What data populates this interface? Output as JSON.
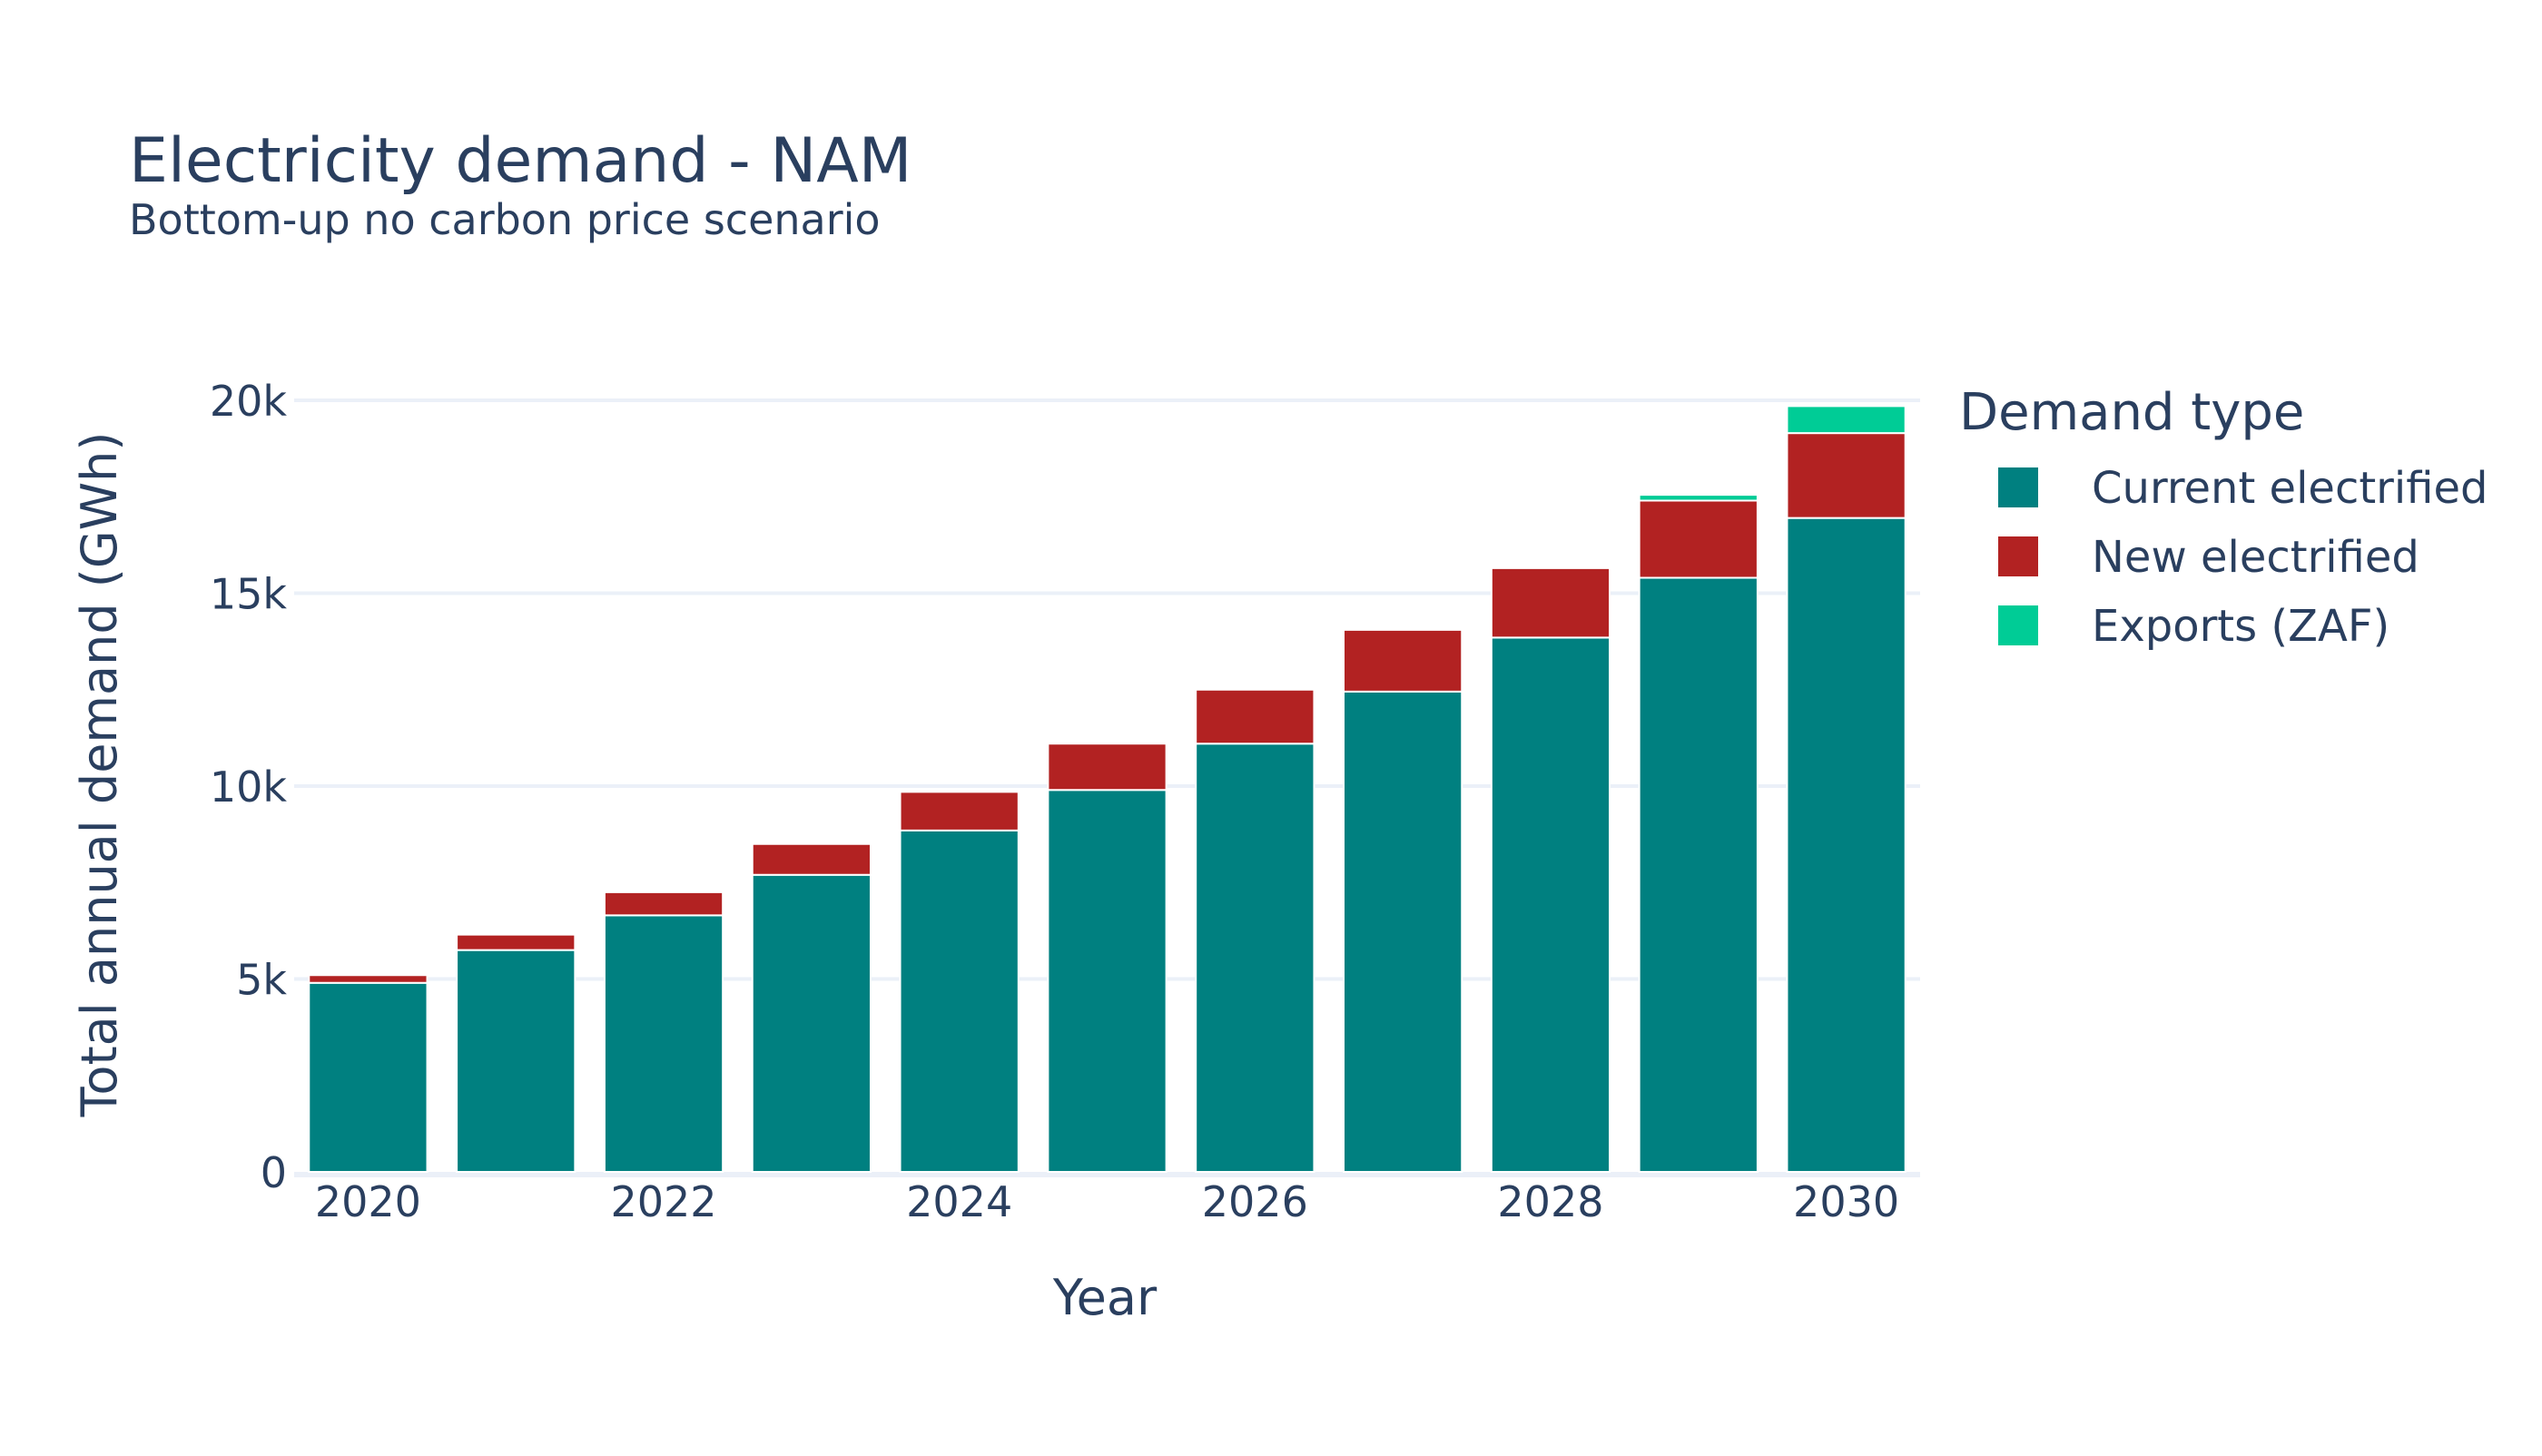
{
  "chart_data": {
    "type": "bar",
    "barmode": "stack",
    "title": "Electricity demand - NAM",
    "subtitle": "Bottom-up no carbon price scenario",
    "xlabel": "Year",
    "ylabel": "Total annual demand (GWh)",
    "x": [
      2020,
      2021,
      2022,
      2023,
      2024,
      2025,
      2026,
      2027,
      2028,
      2029,
      2030
    ],
    "x_tick_labels": [
      "2020",
      "2022",
      "2024",
      "2026",
      "2028",
      "2030"
    ],
    "x_tick_values": [
      2020,
      2022,
      2024,
      2026,
      2028,
      2030
    ],
    "y_tick_values": [
      0,
      5000,
      10000,
      15000,
      20000
    ],
    "y_tick_labels": [
      "0",
      "5k",
      "10k",
      "15k",
      "20k"
    ],
    "ylim": [
      0,
      21000
    ],
    "grid": true,
    "legend_title": "Demand type",
    "legend_position": "right",
    "series": [
      {
        "name": "Current electrified",
        "color": "#008080",
        "values": [
          4900,
          5750,
          6650,
          7700,
          8850,
          9900,
          11100,
          12450,
          13850,
          15400,
          16950
        ]
      },
      {
        "name": "New electrified",
        "color": "#b22222",
        "values": [
          200,
          400,
          600,
          800,
          1000,
          1200,
          1400,
          1600,
          1800,
          2000,
          2200
        ]
      },
      {
        "name": "Exports (ZAF)",
        "color": "#00cc96",
        "values": [
          0,
          0,
          0,
          0,
          0,
          0,
          0,
          0,
          0,
          150,
          700
        ]
      }
    ]
  }
}
